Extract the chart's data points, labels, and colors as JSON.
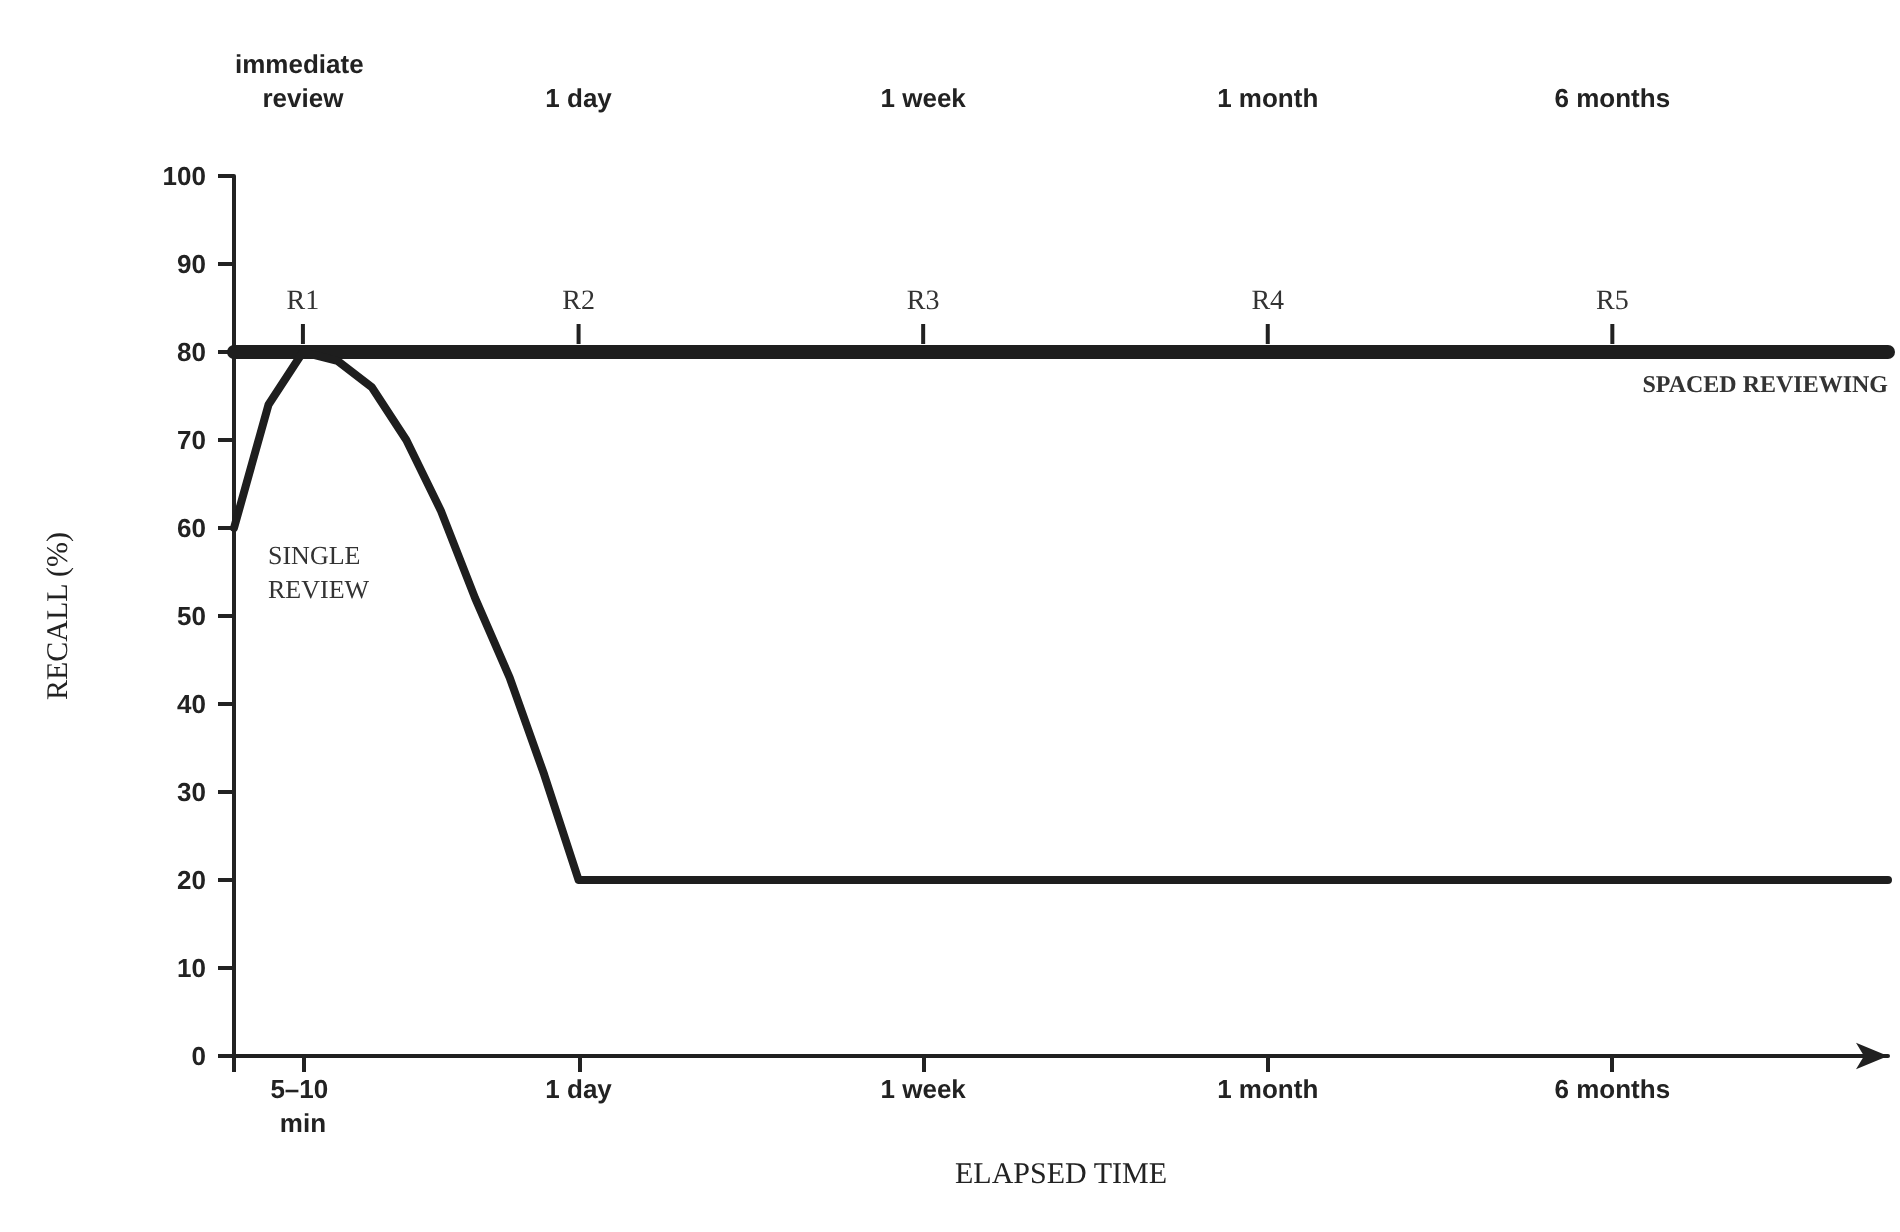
{
  "chart_data": {
    "type": "line",
    "xlabel": "ELAPSED TIME",
    "ylabel": "RECALL (%)",
    "categories": [
      null,
      null,
      "5–10 min",
      null,
      null,
      null,
      null,
      null,
      null,
      null,
      "1 day",
      null,
      null,
      null,
      null,
      null,
      null,
      null,
      null,
      null,
      "1 week",
      null,
      null,
      null,
      null,
      null,
      null,
      null,
      null,
      null,
      "1 month",
      null,
      null,
      null,
      null,
      null,
      null,
      null,
      null,
      null,
      "6 months",
      null,
      null,
      null,
      null,
      null,
      null,
      null,
      null
    ],
    "ylim": [
      0,
      100
    ],
    "yticks": [
      0,
      10,
      20,
      30,
      40,
      50,
      60,
      70,
      80,
      90,
      100
    ],
    "series": [
      {
        "name": "SPACED REVIEWING",
        "color": "#1e1e1e",
        "values": [
          80,
          80,
          80,
          80,
          80,
          80,
          80,
          80,
          80,
          80,
          80,
          80,
          80,
          80,
          80,
          80,
          80,
          80,
          80,
          80,
          80,
          80,
          80,
          80,
          80,
          80,
          80,
          80,
          80,
          80,
          80,
          80,
          80,
          80,
          80,
          80,
          80,
          80,
          80,
          80,
          80,
          80,
          80,
          80,
          80,
          80,
          80,
          80,
          80
        ]
      },
      {
        "name": "SINGLE REVIEW",
        "color": "#1e1e1e",
        "values": [
          60,
          74,
          80,
          79,
          76,
          70,
          62,
          52,
          43,
          32,
          20,
          20,
          20,
          20,
          20,
          20,
          20,
          20,
          20,
          20,
          20,
          20,
          20,
          20,
          20,
          20,
          20,
          20,
          20,
          20,
          20,
          20,
          20,
          20,
          20,
          20,
          20,
          20,
          20,
          20,
          20,
          20,
          20,
          20,
          20,
          20,
          20,
          20,
          20
        ]
      }
    ],
    "annotations": [
      "immediate review",
      "1 day",
      "1 week",
      "1 month",
      "6 months",
      {
        "text": "R1",
        "x": "5–10 min",
        "y": 80
      },
      {
        "text": "R2",
        "x": "1 day",
        "y": 80
      },
      {
        "text": "R3",
        "x": "1 week",
        "y": 80
      },
      {
        "text": "R4",
        "x": "1 month",
        "y": 80
      },
      {
        "text": "R5",
        "x": "6 months",
        "y": 80
      }
    ],
    "legend": false,
    "grid": false,
    "marker": "none",
    "line_style": "solid"
  }
}
